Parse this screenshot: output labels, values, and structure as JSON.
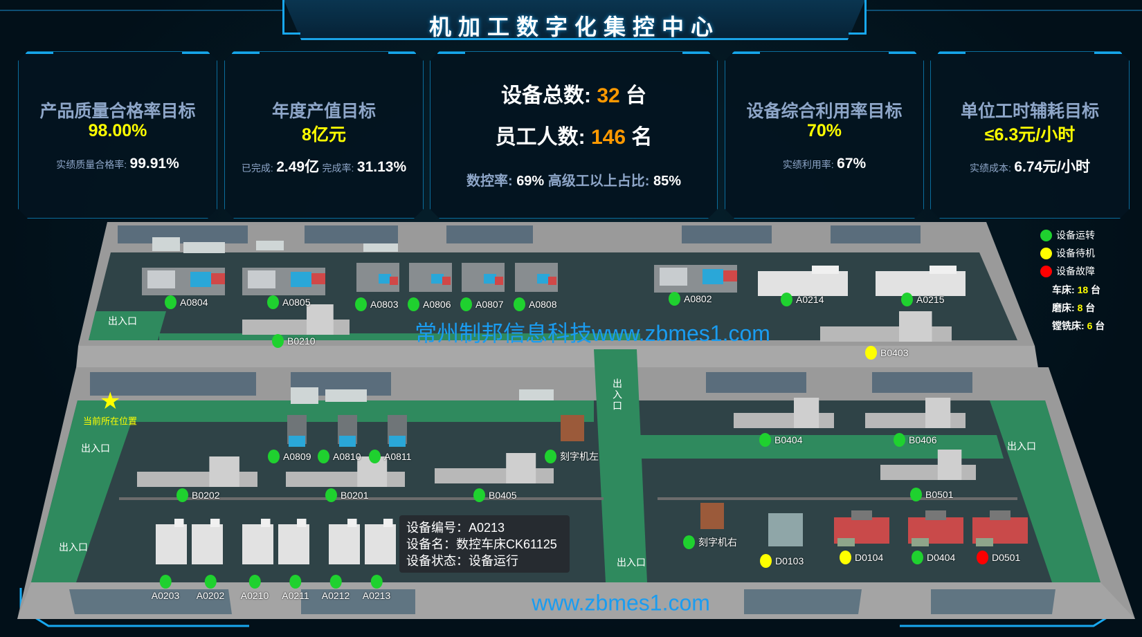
{
  "header": {
    "title": "机加工数字化集控中心"
  },
  "cards": [
    {
      "title": "产品质量合格率目标",
      "target": "98.00%",
      "sub": [
        {
          "label": "实绩质量合格率:",
          "value": "99.91%"
        }
      ]
    },
    {
      "title": "年度产值目标",
      "target": "8亿元",
      "sub": [
        {
          "label": "已完成:",
          "value": "2.49亿"
        },
        {
          "label": "完成率:",
          "value": "31.13%"
        }
      ]
    },
    {
      "title": "设备综合利用率目标",
      "target": "70%",
      "sub": [
        {
          "label": "实绩利用率:",
          "value": "67%"
        }
      ]
    },
    {
      "title": "单位工时辅耗目标",
      "target": "≤6.3元/小时",
      "sub": [
        {
          "label": "实绩成本:",
          "value": "6.74元/小时"
        }
      ]
    }
  ],
  "center_card": {
    "equipment_label": "设备总数:",
    "equipment_count": "32",
    "equipment_unit": "台",
    "staff_label": "员工人数:",
    "staff_count": "146",
    "staff_unit": "名",
    "cnc_label": "数控率:",
    "cnc_value": "69%",
    "senior_label": "高级工以上占比:",
    "senior_value": "85%"
  },
  "legend": {
    "items": [
      {
        "label": "设备运转",
        "color": "#1fd12f"
      },
      {
        "label": "设备待机",
        "color": "#ffff00"
      },
      {
        "label": "设备故障",
        "color": "#ff0000"
      }
    ],
    "counts": [
      {
        "label": "车床:",
        "value": "18",
        "unit": "台"
      },
      {
        "label": "磨床:",
        "value": "8",
        "unit": "台"
      },
      {
        "label": "镗铣床:",
        "value": "6",
        "unit": "台"
      }
    ]
  },
  "status_colors": {
    "running": "#1fd12f",
    "standby": "#ffff00",
    "fault": "#ff0000"
  },
  "machines": [
    {
      "id": "A0804",
      "status": "running"
    },
    {
      "id": "A0805",
      "status": "running"
    },
    {
      "id": "A0803",
      "status": "running"
    },
    {
      "id": "A0806",
      "status": "running"
    },
    {
      "id": "A0807",
      "status": "running"
    },
    {
      "id": "A0808",
      "status": "running"
    },
    {
      "id": "B0210",
      "status": "running"
    },
    {
      "id": "A0802",
      "status": "running"
    },
    {
      "id": "A0214",
      "status": "running"
    },
    {
      "id": "A0215",
      "status": "running"
    },
    {
      "id": "B0403",
      "status": "standby"
    },
    {
      "id": "A0809",
      "status": "running"
    },
    {
      "id": "A0810",
      "status": "running"
    },
    {
      "id": "A0811",
      "status": "running"
    },
    {
      "id": "刻字机左",
      "status": "running"
    },
    {
      "id": "B0202",
      "status": "running"
    },
    {
      "id": "B0201",
      "status": "running"
    },
    {
      "id": "B0405",
      "status": "running"
    },
    {
      "id": "B0404",
      "status": "running"
    },
    {
      "id": "B0406",
      "status": "running"
    },
    {
      "id": "B0501",
      "status": "running"
    },
    {
      "id": "刻字机右",
      "status": "running"
    },
    {
      "id": "D0103",
      "status": "standby"
    },
    {
      "id": "D0104",
      "status": "standby"
    },
    {
      "id": "D0404",
      "status": "running"
    },
    {
      "id": "D0501",
      "status": "fault"
    },
    {
      "id": "A0203",
      "status": "running"
    },
    {
      "id": "A0202",
      "status": "running"
    },
    {
      "id": "A0210",
      "status": "running"
    },
    {
      "id": "A0211",
      "status": "running"
    },
    {
      "id": "A0212",
      "status": "running"
    },
    {
      "id": "A0213",
      "status": "running"
    }
  ],
  "floor": {
    "exit_label": "出入口",
    "current_location": "当前所在位置",
    "watermark_main": "常州制邦信息科技www.zbmes1.com",
    "watermark_bottom": "www.zbmes1.com"
  },
  "tooltip": {
    "line1": "设备编号：A0213",
    "line2": "设备名：数控车床CK61125",
    "line3": "设备状态：设备运行"
  }
}
